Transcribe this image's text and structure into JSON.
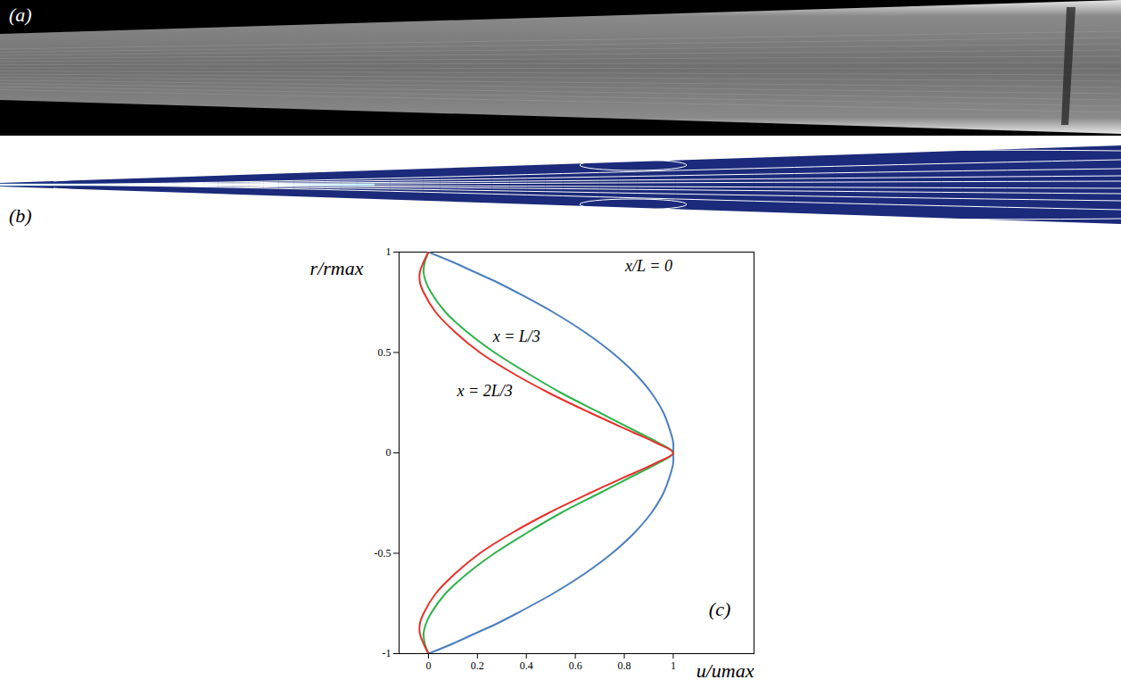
{
  "panels": [
    {
      "label": "(a)"
    },
    {
      "label": "(b)"
    }
  ],
  "chart_data": {
    "type": "line",
    "panel_label": "(c)",
    "panel_label_x": 1.19,
    "panel_label_y": -0.78,
    "xlabel": "u/umax",
    "ylabel": "r/rmax",
    "xlim": [
      -0.12,
      1.33
    ],
    "ylim": [
      -1,
      1
    ],
    "xticks": [
      0,
      0.2,
      0.4,
      0.6,
      0.8,
      1
    ],
    "yticks": [
      -1,
      -0.5,
      0,
      0.5,
      1
    ],
    "series": [
      {
        "name": "x/L = 0",
        "color": "#4a7fc1",
        "label_x": 0.9,
        "label_y": 0.93,
        "x": [
          0,
          0.1,
          0.19,
          0.28,
          0.36,
          0.51,
          0.64,
          0.75,
          0.84,
          0.91,
          0.96,
          0.99,
          1,
          1,
          1,
          0.99,
          0.96,
          0.91,
          0.84,
          0.75,
          0.64,
          0.51,
          0.36,
          0.28,
          0.19,
          0.1,
          0
        ],
        "y": [
          1,
          0.95,
          0.9,
          0.85,
          0.8,
          0.7,
          0.6,
          0.5,
          0.4,
          0.3,
          0.2,
          0.1,
          0.05,
          0,
          -0.05,
          -0.1,
          -0.2,
          -0.3,
          -0.4,
          -0.5,
          -0.6,
          -0.7,
          -0.8,
          -0.85,
          -0.9,
          -0.95,
          -1
        ]
      },
      {
        "name": "x = L/3",
        "color": "#2db34a",
        "label_x": 0.36,
        "label_y": 0.58,
        "x": [
          0,
          -0.015,
          -0.02,
          -0.01,
          0.01,
          0.07,
          0.16,
          0.27,
          0.4,
          0.54,
          0.7,
          0.86,
          0.94,
          1,
          0.94,
          0.86,
          0.7,
          0.54,
          0.4,
          0.27,
          0.16,
          0.07,
          0.01,
          -0.01,
          -0.02,
          -0.015,
          0
        ],
        "y": [
          1,
          0.95,
          0.9,
          0.85,
          0.8,
          0.7,
          0.6,
          0.5,
          0.4,
          0.3,
          0.2,
          0.1,
          0.05,
          0,
          -0.05,
          -0.1,
          -0.2,
          -0.3,
          -0.4,
          -0.5,
          -0.6,
          -0.7,
          -0.8,
          -0.85,
          -0.9,
          -0.95,
          -1
        ]
      },
      {
        "name": "x = 2L/3",
        "color": "#e8302a",
        "label_x": 0.23,
        "label_y": 0.31,
        "x": [
          0,
          -0.02,
          -0.035,
          -0.035,
          -0.02,
          0.03,
          0.11,
          0.21,
          0.34,
          0.49,
          0.66,
          0.84,
          0.93,
          1,
          0.93,
          0.84,
          0.66,
          0.49,
          0.34,
          0.21,
          0.11,
          0.03,
          -0.02,
          -0.035,
          -0.035,
          -0.02,
          0
        ],
        "y": [
          1,
          0.95,
          0.9,
          0.85,
          0.8,
          0.7,
          0.6,
          0.5,
          0.4,
          0.3,
          0.2,
          0.1,
          0.05,
          0,
          -0.05,
          -0.1,
          -0.2,
          -0.3,
          -0.4,
          -0.5,
          -0.6,
          -0.7,
          -0.8,
          -0.85,
          -0.9,
          -0.95,
          -1
        ]
      }
    ]
  }
}
